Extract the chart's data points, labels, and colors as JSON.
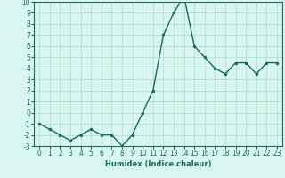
{
  "x": [
    0,
    1,
    2,
    3,
    4,
    5,
    6,
    7,
    8,
    9,
    10,
    11,
    12,
    13,
    14,
    15,
    16,
    17,
    18,
    19,
    20,
    21,
    22,
    23
  ],
  "y": [
    -1,
    -1.5,
    -2,
    -2.5,
    -2,
    -1.5,
    -2,
    -2,
    -3,
    -2,
    0,
    2,
    7,
    9,
    10.5,
    6,
    5,
    4,
    3.5,
    4.5,
    4.5,
    3.5,
    4.5,
    4.5
  ],
  "line_color": "#1a6b5a",
  "marker_color": "#1a6b5a",
  "bg_color": "#d9f5f0",
  "grid_color": "#aaddcc",
  "xlabel": "Humidex (Indice chaleur)",
  "ylim": [
    -3,
    10
  ],
  "xlim": [
    -0.5,
    23.5
  ],
  "yticks": [
    -3,
    -2,
    -1,
    0,
    1,
    2,
    3,
    4,
    5,
    6,
    7,
    8,
    9,
    10
  ],
  "xticks": [
    0,
    1,
    2,
    3,
    4,
    5,
    6,
    7,
    8,
    9,
    10,
    11,
    12,
    13,
    14,
    15,
    16,
    17,
    18,
    19,
    20,
    21,
    22,
    23
  ],
  "xlabel_fontsize": 6,
  "tick_fontsize": 5.5,
  "line_width": 1.0,
  "marker_size": 2.0
}
